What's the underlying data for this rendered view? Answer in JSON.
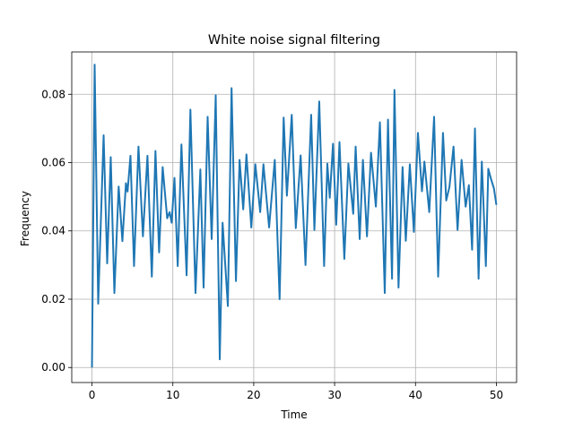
{
  "chart_data": {
    "type": "line",
    "title": "White noise signal filtering",
    "x_label": "Time",
    "y_label": "Frequency",
    "xlim": [
      -2.5,
      52.5
    ],
    "ylim": [
      -0.0044,
      0.0924
    ],
    "xticks": [
      0,
      10,
      20,
      30,
      40,
      50
    ],
    "yticks": [
      {
        "value": 0,
        "label": "0.00"
      },
      0.02,
      0.04,
      0.06,
      0.08
    ],
    "grid": true,
    "series": [
      {
        "color": "#1f77b4",
        "x": [
          0,
          0.33,
          0.77,
          1.44,
          1.88,
          2.32,
          2.77,
          3.3,
          3.76,
          4.2,
          4.4,
          4.76,
          5.2,
          5.75,
          6.3,
          6.86,
          7.4,
          7.85,
          8.3,
          8.74,
          9.3,
          9.6,
          9.85,
          10.2,
          10.6,
          11.06,
          11.7,
          12.17,
          12.8,
          13.4,
          13.8,
          14.3,
          14.8,
          15.3,
          15.8,
          16.15,
          16.8,
          17.26,
          17.8,
          18.25,
          18.7,
          19.1,
          19.7,
          20.2,
          20.8,
          21.2,
          21.9,
          22.6,
          23.2,
          23.7,
          24.1,
          24.7,
          25.2,
          25.8,
          26.4,
          27.1,
          27.5,
          28.1,
          28.7,
          29.1,
          29.4,
          29.8,
          30.2,
          30.6,
          31.2,
          31.7,
          32.3,
          32.6,
          33.1,
          33.5,
          34.0,
          34.5,
          35.1,
          35.6,
          36.2,
          36.6,
          37.1,
          37.4,
          37.9,
          38.4,
          38.8,
          39.3,
          39.8,
          40.3,
          40.8,
          41.1,
          41.7,
          42.3,
          42.8,
          43.4,
          43.8,
          44.2,
          44.7,
          45.2,
          45.7,
          46.2,
          46.6,
          47.0,
          47.35,
          47.8,
          48.2,
          48.7,
          49.0,
          49.3,
          49.7,
          50
        ],
        "values": [
          0,
          0.0887,
          0.0187,
          0.068,
          0.0305,
          0.0616,
          0.0218,
          0.053,
          0.037,
          0.054,
          0.0515,
          0.062,
          0.0297,
          0.0647,
          0.0384,
          0.062,
          0.0266,
          0.0634,
          0.0337,
          0.0587,
          0.0437,
          0.0455,
          0.0424,
          0.0555,
          0.0297,
          0.0653,
          0.027,
          0.0755,
          0.0218,
          0.058,
          0.0234,
          0.0734,
          0.0376,
          0.0797,
          0.0024,
          0.0424,
          0.018,
          0.0818,
          0.0253,
          0.0608,
          0.0463,
          0.0624,
          0.041,
          0.0595,
          0.0455,
          0.0595,
          0.041,
          0.0608,
          0.02,
          0.0732,
          0.0503,
          0.074,
          0.0408,
          0.0621,
          0.03,
          0.074,
          0.0403,
          0.0779,
          0.0297,
          0.0597,
          0.0497,
          0.0655,
          0.0418,
          0.066,
          0.0318,
          0.0597,
          0.045,
          0.0647,
          0.0376,
          0.0608,
          0.0384,
          0.0629,
          0.0471,
          0.0718,
          0.0218,
          0.0726,
          0.026,
          0.0813,
          0.0234,
          0.0587,
          0.0371,
          0.0595,
          0.0397,
          0.0687,
          0.0516,
          0.0603,
          0.0455,
          0.0734,
          0.0266,
          0.0687,
          0.0489,
          0.0529,
          0.0647,
          0.0403,
          0.0608,
          0.0471,
          0.0534,
          0.0345,
          0.07,
          0.026,
          0.0603,
          0.0297,
          0.0582,
          0.0555,
          0.0524,
          0.0476
        ]
      }
    ]
  }
}
